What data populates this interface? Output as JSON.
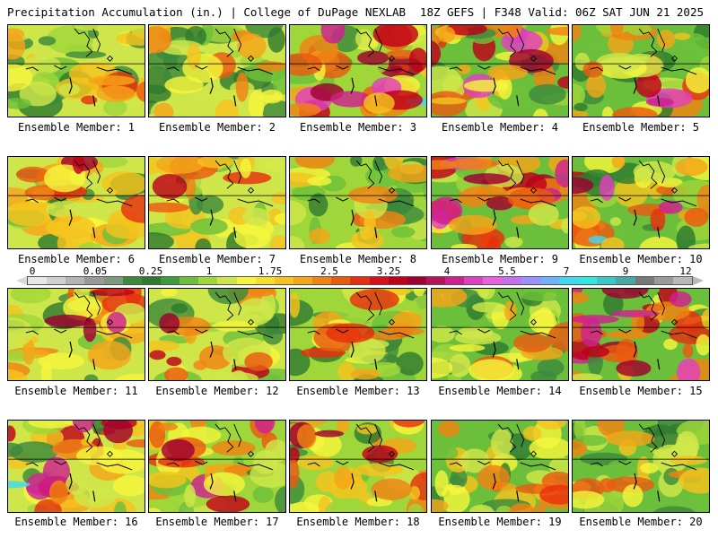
{
  "header": {
    "title": "Precipitation Accumulation (in.) | College of DuPage NEXLAB",
    "valid": "18Z GEFS | F348 Valid: 06Z SAT JUN 21 2025"
  },
  "colorbar": {
    "ticks": [
      "0",
      "0.05",
      "0.25",
      "1",
      "1.75",
      "2.5",
      "3.25",
      "4",
      "5.5",
      "7",
      "9",
      "12"
    ],
    "colors": [
      "#e8e8e8",
      "#d0d0d0",
      "#b4b4b4",
      "#9a9a9a",
      "#7c9a7c",
      "#3d8a3d",
      "#2f7a2f",
      "#3e9c3e",
      "#6cbf3a",
      "#9fd63a",
      "#cfe64a",
      "#f5f53c",
      "#f6df28",
      "#f5c31e",
      "#f5a518",
      "#f08212",
      "#ec5a10",
      "#e8300e",
      "#d8101a",
      "#c00018",
      "#a00030",
      "#b8105a",
      "#d02090",
      "#e040c0",
      "#ea60e0",
      "#c470f0",
      "#9a90ff",
      "#70b0ff",
      "#40d8f0",
      "#30e8e0",
      "#38c8c8",
      "#48a8a8",
      "#787878",
      "#9a9a9a",
      "#b8b8b8"
    ]
  },
  "panels": [
    {
      "label": "Ensemble Member: 1"
    },
    {
      "label": "Ensemble Member: 2"
    },
    {
      "label": "Ensemble Member: 3"
    },
    {
      "label": "Ensemble Member: 4"
    },
    {
      "label": "Ensemble Member: 5"
    },
    {
      "label": "Ensemble Member: 6"
    },
    {
      "label": "Ensemble Member: 7"
    },
    {
      "label": "Ensemble Member: 8"
    },
    {
      "label": "Ensemble Member: 9"
    },
    {
      "label": "Ensemble Member: 10"
    },
    {
      "label": "Ensemble Member: 11"
    },
    {
      "label": "Ensemble Member: 12"
    },
    {
      "label": "Ensemble Member: 13"
    },
    {
      "label": "Ensemble Member: 14"
    },
    {
      "label": "Ensemble Member: 15"
    },
    {
      "label": "Ensemble Member: 16"
    },
    {
      "label": "Ensemble Member: 17"
    },
    {
      "label": "Ensemble Member: 18"
    },
    {
      "label": "Ensemble Member: 19"
    },
    {
      "label": "Ensemble Member: 20"
    }
  ]
}
